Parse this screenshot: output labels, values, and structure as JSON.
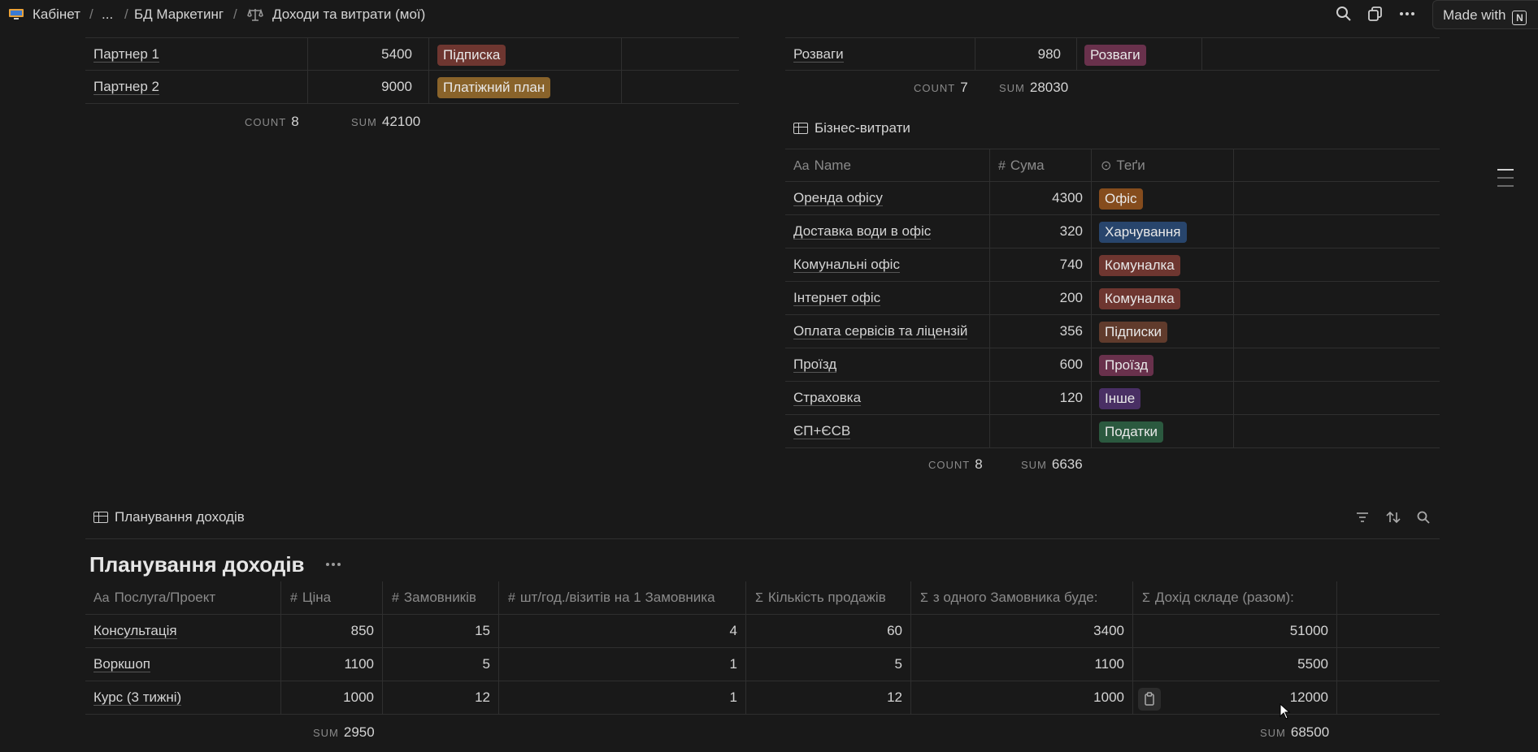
{
  "breadcrumb": {
    "items": [
      "Кабінет",
      "...",
      "БД Маркетинг",
      "Доходи та витрати (мої)"
    ],
    "separator": "/"
  },
  "topbar": {
    "made_with": "Made with",
    "logo_letter": "N"
  },
  "income_table": {
    "rows": [
      {
        "name": "Партнер 1",
        "amount": "5400",
        "tag": "Підписка",
        "tag_color": "#6e3630"
      },
      {
        "name": "Партнер 2",
        "amount": "9000",
        "tag": "Платіжний план",
        "tag_color": "#89632a"
      }
    ],
    "count_label": "COUNT",
    "count": "8",
    "sum_label": "SUM",
    "sum": "42100"
  },
  "personal_table": {
    "rows": [
      {
        "name": "Розваги",
        "amount": "980",
        "tag": "Розваги",
        "tag_color": "#69314c"
      }
    ],
    "count_label": "COUNT",
    "count": "7",
    "sum_label": "SUM",
    "sum": "28030"
  },
  "business_table": {
    "title": "Бізнес-витрати",
    "columns": [
      "Name",
      "Сума",
      "Теґи"
    ],
    "rows": [
      {
        "name": "Оренда офісу",
        "amount": "4300",
        "tag": "Офіс",
        "tag_color": "#854c1d"
      },
      {
        "name": "Доставка води в офіс",
        "amount": "320",
        "tag": "Харчування",
        "tag_color": "#28456c"
      },
      {
        "name": "Комунальні офіс",
        "amount": "740",
        "tag": "Комуналка",
        "tag_color": "#6e3630"
      },
      {
        "name": "Інтернет офіс",
        "amount": "200",
        "tag": "Комуналка",
        "tag_color": "#6e3630"
      },
      {
        "name": "Оплата сервісів та ліцензій",
        "amount": "356",
        "tag": "Підписки",
        "tag_color": "#603b2c"
      },
      {
        "name": "Проїзд",
        "amount": "600",
        "tag": "Проїзд",
        "tag_color": "#69314c"
      },
      {
        "name": "Страховка",
        "amount": "120",
        "tag": "Інше",
        "tag_color": "#492f64"
      },
      {
        "name": "ЄП+ЄСВ",
        "amount": "",
        "tag": "Податки",
        "tag_color": "#2b593f"
      }
    ],
    "count_label": "COUNT",
    "count": "8",
    "sum_label": "SUM",
    "sum": "6636"
  },
  "planning": {
    "db_title": "Планування доходів",
    "title": "Планування доходів",
    "columns": [
      "Послуга/Проект",
      "Ціна",
      "Замовників",
      "шт/год./візитів на 1 Замовника",
      "Кількість продажів",
      "з одного Замовника буде:",
      "Дохід складе (разом):"
    ],
    "rows": [
      {
        "name": "Консультація",
        "price": "850",
        "clients": "15",
        "units": "4",
        "sales": "60",
        "per_client": "3400",
        "total": "51000"
      },
      {
        "name": "Воркшоп",
        "price": "1100",
        "clients": "5",
        "units": "1",
        "sales": "5",
        "per_client": "1100",
        "total": "5500"
      },
      {
        "name": "Курс (3 тижні)",
        "price": "1000",
        "clients": "12",
        "units": "1",
        "sales": "12",
        "per_client": "1000",
        "total": "12000"
      }
    ],
    "sum_label": "SUM",
    "price_sum": "2950",
    "total_sum": "68500"
  }
}
